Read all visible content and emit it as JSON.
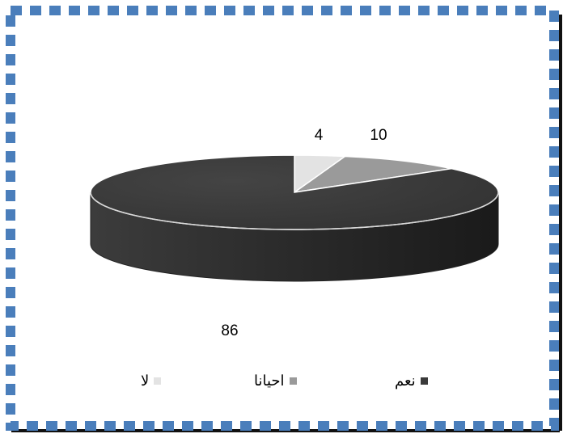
{
  "chart_data": {
    "type": "pie",
    "style": "3d",
    "slices": [
      {
        "label": "لا",
        "value": 4,
        "color": "#e3e3e3"
      },
      {
        "label": "احيانا",
        "value": 10,
        "color": "#9a9a9a"
      },
      {
        "label": "نعم",
        "value": 86,
        "color": "#3a3a3a"
      }
    ],
    "data_labels": true,
    "legend": "bottom"
  },
  "colors": {
    "border_blue": "#4a7ebb",
    "border_shadow": "#111111"
  }
}
